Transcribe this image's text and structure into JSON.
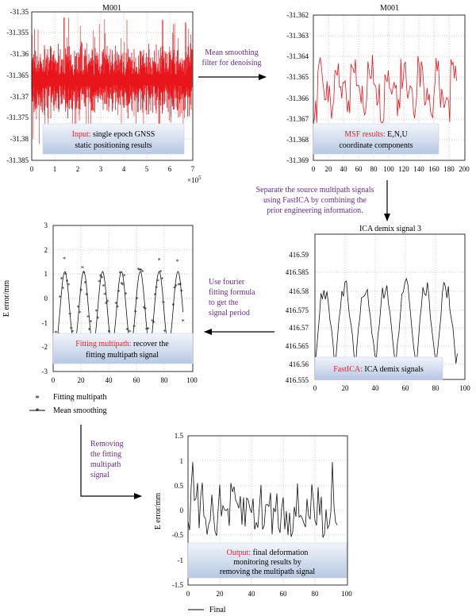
{
  "colors": {
    "purple": "#6a2c91",
    "red_label": "#e0242a",
    "box_top": "#f2f5fb",
    "box_bottom": "#b7c8e3",
    "red_signal": "#e8151b"
  },
  "panel1": {
    "title": "M001",
    "yticks": [
      "-31.35",
      "-31.355",
      "-31.36",
      "-31.365",
      "-31.37",
      "-31.375",
      "-31.38",
      "-31.385"
    ],
    "xticks": [
      "0",
      "1",
      "2",
      "3",
      "4",
      "5",
      "6",
      "7"
    ],
    "xexp": "×10",
    "xexp_pow": "5",
    "label_red": "Input:",
    "label_line1": " single epoch GNSS",
    "label_line2": "static positioning results"
  },
  "arrow1": {
    "line1": "Mean smoothing",
    "line2": "filter for denoising"
  },
  "panel2": {
    "title": "M001",
    "yticks": [
      "-31.362",
      "-31.363",
      "-31.364",
      "-31.365",
      "-31.366",
      "-31.367",
      "-31.368",
      "-31.369"
    ],
    "xticks": [
      "0",
      "20",
      "40",
      "60",
      "80",
      "100",
      "120",
      "140",
      "160",
      "180",
      "200"
    ],
    "label_red": "MSF results:",
    "label_line1": " E,N,U",
    "label_line2": "coordinate components"
  },
  "arrow2": {
    "line1": "Separate the source multipath signals",
    "line2": "using FastICA by combining the",
    "line3": "prior engineering information."
  },
  "panel3": {
    "title": "ICA demix signal 3",
    "yticks": [
      "416.59",
      "416.585",
      "416.58",
      "416.575",
      "416.57",
      "416.565",
      "416.56",
      "416.555"
    ],
    "xticks": [
      "0",
      "20",
      "40",
      "60",
      "80",
      "100"
    ],
    "label_red": "FastICA:",
    "label_line1": " ICA demix signals"
  },
  "arrow3": {
    "line1": "Use fourier",
    "line2": "fitting formula",
    "line3": "to get the",
    "line4": "signal period"
  },
  "panel4": {
    "ylabel": "E error/mm",
    "yticks": [
      "3",
      "2",
      "1",
      "0",
      "-1",
      "-2",
      "-3"
    ],
    "xticks": [
      "0",
      "20",
      "40",
      "60",
      "80",
      "100"
    ],
    "label_red": "Fitting multipath:",
    "label_line1": " recover the",
    "label_line2": "fitting multipath signal",
    "legend": [
      "Fitting multipath",
      "Mean smoothing"
    ]
  },
  "arrow4": {
    "line1": "Removing",
    "line2": "the fitting",
    "line3": "multipath",
    "line4": "signal"
  },
  "panel5": {
    "ylabel": "E error/mm",
    "yticks": [
      "1.5",
      "1",
      "0.5",
      "0",
      "-0.5",
      "-1",
      "-1.5"
    ],
    "xticks": [
      "0",
      "20",
      "40",
      "60",
      "80",
      "100"
    ],
    "label_red": "Output:",
    "label_line1": " final deformation",
    "label_line2": "monitoring results by",
    "label_line3": "removing the multipath signal",
    "legend": [
      "Final"
    ]
  }
}
